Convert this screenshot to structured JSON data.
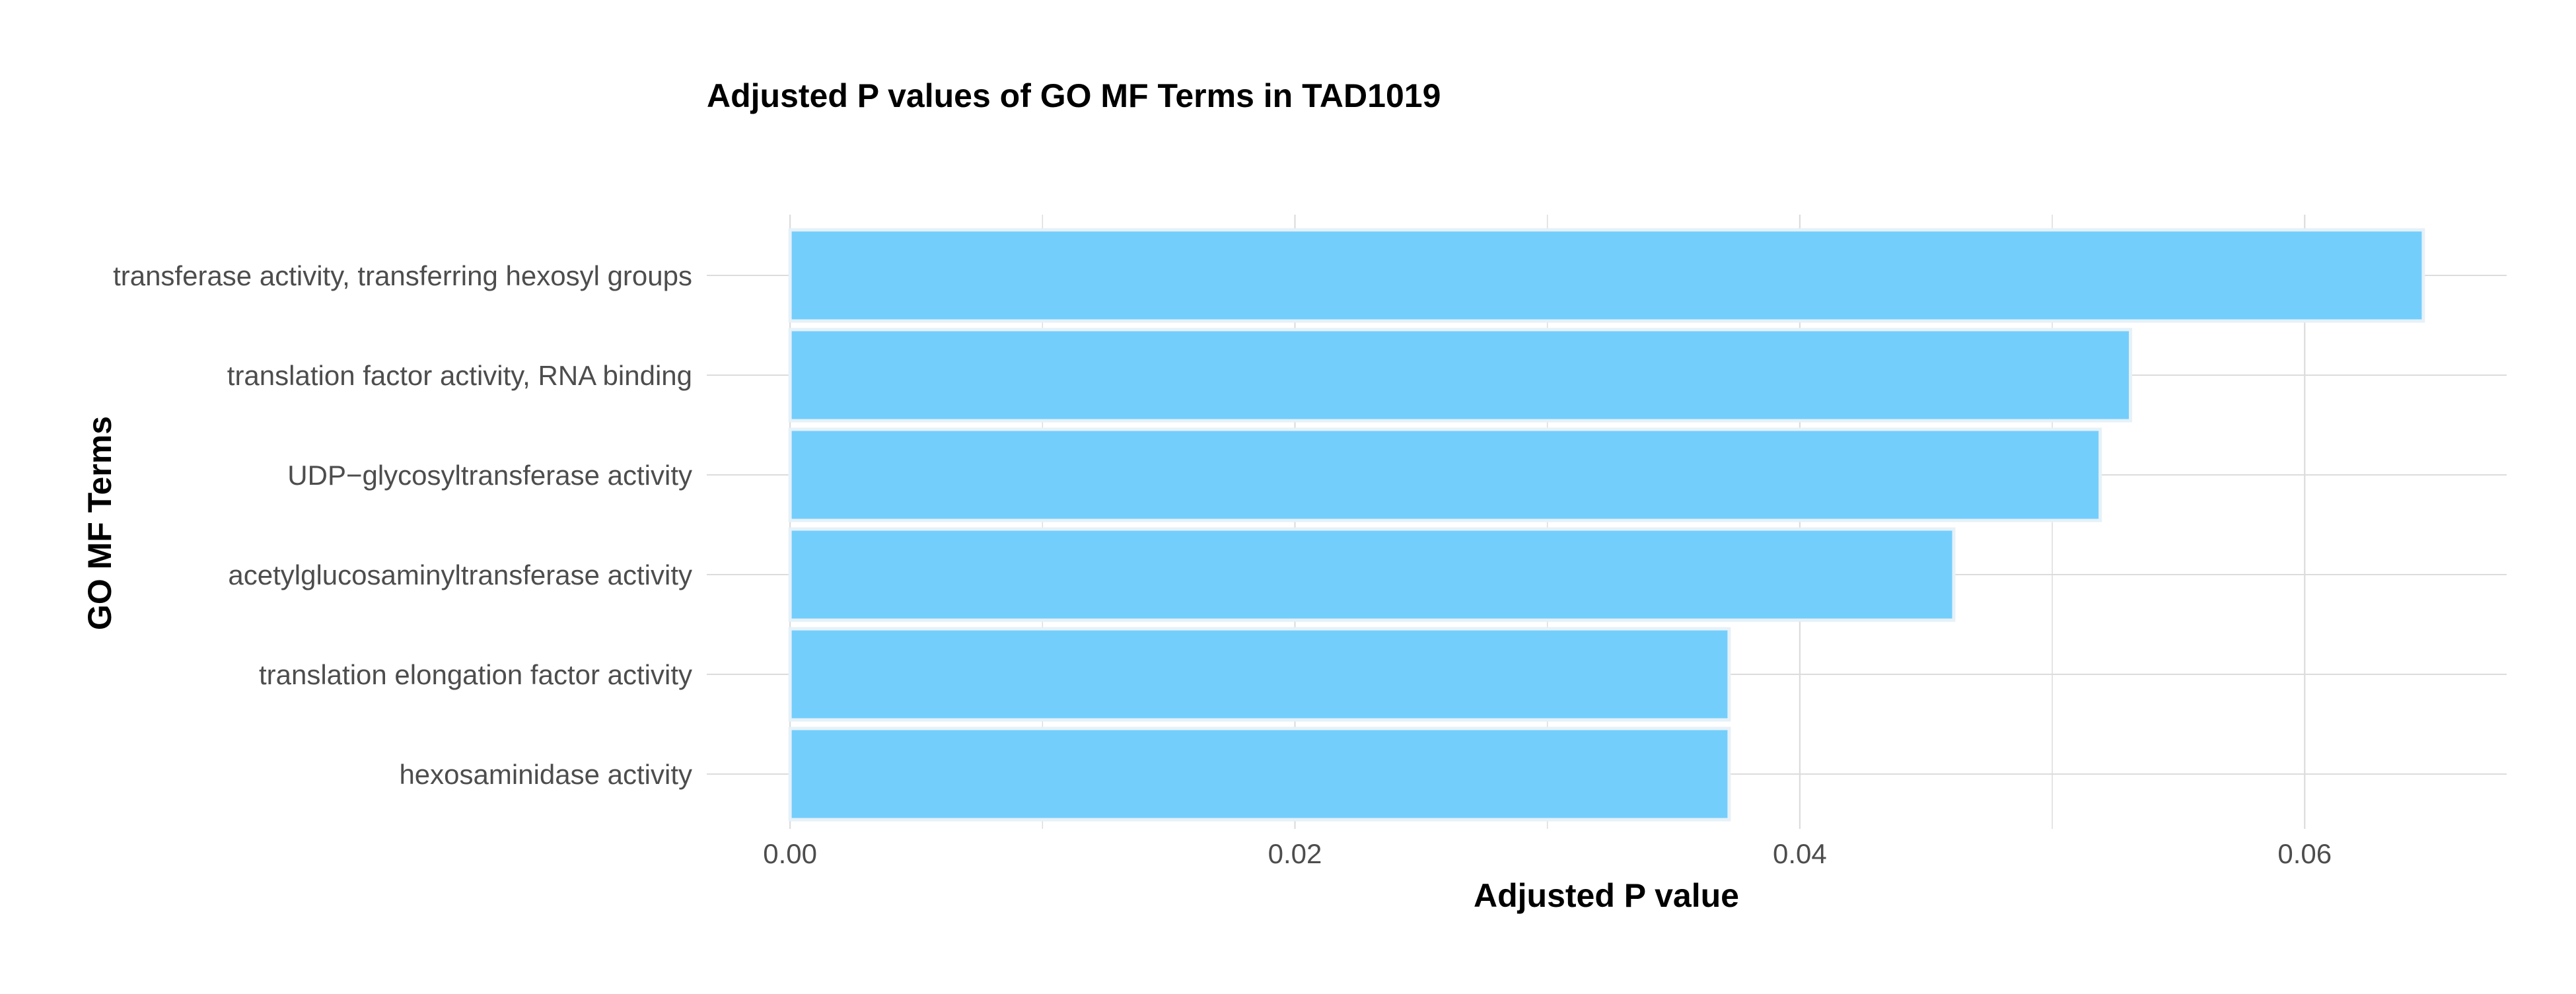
{
  "chart_data": {
    "type": "bar",
    "orientation": "horizontal",
    "title": "Adjusted P values of GO MF Terms in TAD1019",
    "xlabel": "Adjusted P value",
    "ylabel": "GO MF Terms",
    "categories": [
      "transferase activity, transferring hexosyl groups",
      "translation factor activity, RNA binding",
      "UDP−glycosyltransferase activity",
      "acetylglucosaminyltransferase activity",
      "translation elongation factor activity",
      "hexosaminidase activity"
    ],
    "values": [
      0.0647,
      0.0531,
      0.0519,
      0.0461,
      0.0372,
      0.0372
    ],
    "xlim": [
      -0.0033,
      0.068
    ],
    "xticks": [
      0.0,
      0.02,
      0.04,
      0.06
    ],
    "xtick_labels": [
      "0.00",
      "0.02",
      "0.04",
      "0.06"
    ],
    "grid": true,
    "legend": "none",
    "colors": {
      "bar_fill": "#74CEFC",
      "bar_outline": "#E6F1F8",
      "grid": "#DCDCDC"
    }
  }
}
